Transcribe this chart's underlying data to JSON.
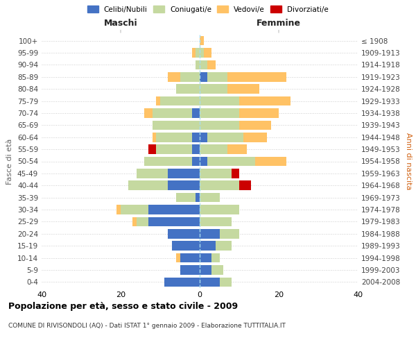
{
  "age_groups": [
    "0-4",
    "5-9",
    "10-14",
    "15-19",
    "20-24",
    "25-29",
    "30-34",
    "35-39",
    "40-44",
    "45-49",
    "50-54",
    "55-59",
    "60-64",
    "65-69",
    "70-74",
    "75-79",
    "80-84",
    "85-89",
    "90-94",
    "95-99",
    "100+"
  ],
  "birth_years": [
    "2004-2008",
    "1999-2003",
    "1994-1998",
    "1989-1993",
    "1984-1988",
    "1979-1983",
    "1974-1978",
    "1969-1973",
    "1964-1968",
    "1959-1963",
    "1954-1958",
    "1949-1953",
    "1944-1948",
    "1939-1943",
    "1934-1938",
    "1929-1933",
    "1924-1928",
    "1919-1923",
    "1914-1918",
    "1909-1913",
    "≤ 1908"
  ],
  "male": {
    "celibi": [
      9,
      5,
      5,
      7,
      8,
      13,
      13,
      1,
      8,
      8,
      2,
      2,
      2,
      0,
      2,
      0,
      0,
      0,
      0,
      0,
      0
    ],
    "coniugati": [
      0,
      0,
      0,
      0,
      0,
      3,
      7,
      5,
      10,
      8,
      12,
      9,
      9,
      12,
      10,
      10,
      6,
      5,
      1,
      1,
      0
    ],
    "vedovi": [
      0,
      0,
      1,
      0,
      0,
      1,
      1,
      0,
      0,
      0,
      0,
      0,
      1,
      0,
      2,
      1,
      0,
      3,
      0,
      1,
      0
    ],
    "divorziati": [
      0,
      0,
      0,
      0,
      0,
      0,
      0,
      0,
      0,
      0,
      0,
      2,
      0,
      0,
      0,
      0,
      0,
      0,
      0,
      0,
      0
    ]
  },
  "female": {
    "nubili": [
      5,
      3,
      3,
      4,
      5,
      0,
      0,
      0,
      0,
      0,
      2,
      0,
      2,
      0,
      0,
      0,
      0,
      2,
      0,
      0,
      0
    ],
    "coniugate": [
      3,
      3,
      2,
      4,
      5,
      8,
      10,
      5,
      10,
      8,
      12,
      7,
      9,
      10,
      10,
      10,
      7,
      5,
      2,
      1,
      0
    ],
    "vedove": [
      0,
      0,
      0,
      0,
      0,
      0,
      0,
      0,
      0,
      0,
      8,
      5,
      6,
      8,
      10,
      13,
      8,
      15,
      2,
      2,
      1
    ],
    "divorziate": [
      0,
      0,
      0,
      0,
      0,
      0,
      0,
      0,
      3,
      2,
      0,
      0,
      0,
      0,
      0,
      0,
      0,
      0,
      0,
      0,
      0
    ]
  },
  "color_celibi": "#4472c4",
  "color_coniugati": "#c5d9a0",
  "color_vedovi": "#ffc265",
  "color_divorziati": "#cc0000",
  "xlim": 40,
  "title": "Popolazione per età, sesso e stato civile - 2009",
  "subtitle": "COMUNE DI RIVISONDOLI (AQ) - Dati ISTAT 1° gennaio 2009 - Elaborazione TUTTITALIA.IT",
  "ylabel_left": "Fasce di età",
  "ylabel_right": "Anni di nascita",
  "bg_color": "#f0f0f0"
}
